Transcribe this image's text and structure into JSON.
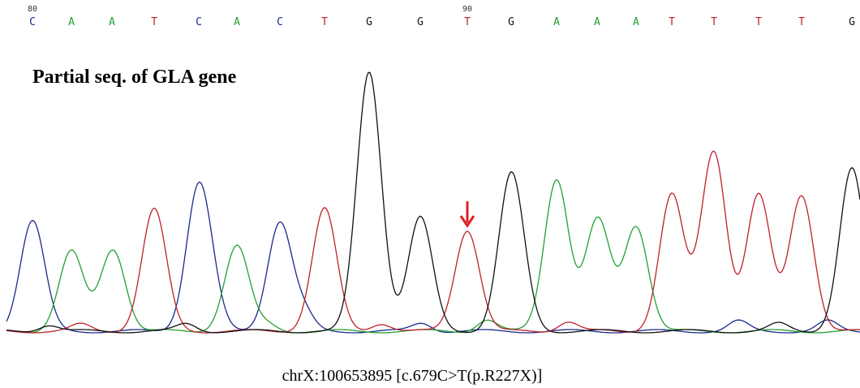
{
  "header": {
    "position_labels": [
      "80",
      "90"
    ]
  },
  "sequence": {
    "bases": [
      "C",
      "A",
      "A",
      "T",
      "C",
      "A",
      "C",
      "T",
      "G",
      "G",
      "T",
      "G",
      "A",
      "A",
      "A",
      "T",
      "T",
      "T",
      "T",
      "G"
    ]
  },
  "title": "Partial seq. of GLA gene",
  "caption": "chrX:100653895 [c.679C>T(p.R227X)]"
}
